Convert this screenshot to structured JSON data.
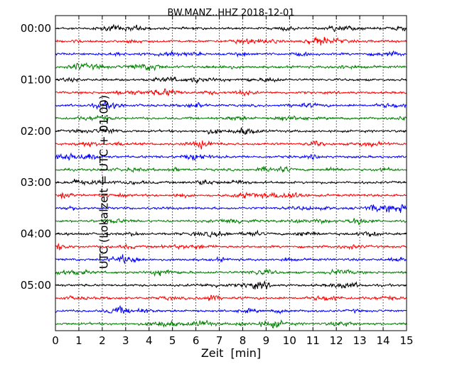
{
  "chart_data": {
    "type": "line",
    "title": "BW.MANZ..HHZ 2018-12-01",
    "xlabel": "Zeit  [min]",
    "ylabel": "UTC (Lokalzeit = UTC + 01:00)",
    "xlim": [
      0,
      15
    ],
    "x_ticks": [
      "0",
      "1",
      "2",
      "3",
      "4",
      "5",
      "6",
      "7",
      "8",
      "9",
      "10",
      "11",
      "12",
      "13",
      "14",
      "15"
    ],
    "y_ticks": [
      "00:00",
      "01:00",
      "02:00",
      "03:00",
      "04:00",
      "05:00"
    ],
    "grid": "x-dotted",
    "trace_minutes": 15,
    "trace_count": 24,
    "colors": [
      "#000000",
      "#ff0000",
      "#0000ff",
      "#008000"
    ],
    "series": [
      {
        "start": "00:00"
      },
      {
        "start": "00:15"
      },
      {
        "start": "00:30"
      },
      {
        "start": "00:45"
      },
      {
        "start": "01:00"
      },
      {
        "start": "01:15"
      },
      {
        "start": "01:30"
      },
      {
        "start": "01:45"
      },
      {
        "start": "02:00"
      },
      {
        "start": "02:15"
      },
      {
        "start": "02:30"
      },
      {
        "start": "02:45"
      },
      {
        "start": "03:00"
      },
      {
        "start": "03:15"
      },
      {
        "start": "03:30"
      },
      {
        "start": "03:45"
      },
      {
        "start": "04:00"
      },
      {
        "start": "04:15"
      },
      {
        "start": "04:30"
      },
      {
        "start": "04:45"
      },
      {
        "start": "05:00"
      },
      {
        "start": "05:15"
      },
      {
        "start": "05:30"
      },
      {
        "start": "05:45"
      }
    ]
  }
}
